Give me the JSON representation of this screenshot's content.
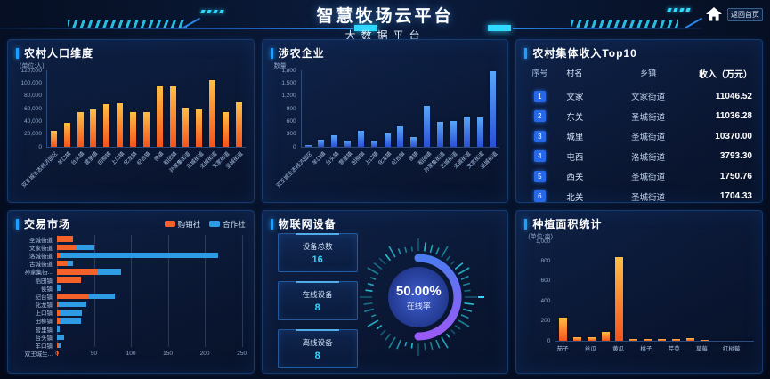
{
  "header": {
    "title": "智慧牧场云平台",
    "subtitle": "大数据平台",
    "home_label": "返回首页"
  },
  "colors": {
    "accent": "#1e9fff",
    "cyan": "#2fd9ff",
    "orange_top": "#ffbe45",
    "orange_bottom": "#f4531d",
    "blue_top": "#58a6f7",
    "blue_bottom": "#2a50d4",
    "market_buy": "#f4622a",
    "market_coop": "#2e9be5",
    "gauge_start": "#4b7bf0",
    "gauge_end": "#9a5af5",
    "badge": "#2668e8"
  },
  "panels": {
    "population": {
      "title": "农村人口维度",
      "unit": "(单位:人)"
    },
    "enterprise": {
      "title": "涉农企业",
      "axis_label": "数量"
    },
    "income": {
      "title": "农村集体收入Top10",
      "columns": [
        "序号",
        "村名",
        "乡镇",
        "收入（万元）"
      ],
      "rows": [
        {
          "rank": "1",
          "village": "文家",
          "town": "文家街道",
          "income": "11046.52"
        },
        {
          "rank": "2",
          "village": "东关",
          "town": "圣城街道",
          "income": "11036.28"
        },
        {
          "rank": "3",
          "village": "城里",
          "town": "圣城街道",
          "income": "10370.00"
        },
        {
          "rank": "4",
          "village": "屯西",
          "town": "洛城街道",
          "income": "3793.30"
        },
        {
          "rank": "5",
          "village": "西关",
          "town": "圣城街道",
          "income": "1750.76"
        },
        {
          "rank": "6",
          "village": "北关",
          "town": "圣城街道",
          "income": "1704.33"
        }
      ]
    },
    "market": {
      "title": "交易市场",
      "legend": [
        "购销社",
        "合作社"
      ]
    },
    "iot": {
      "title": "物联网设备",
      "stats": [
        {
          "label": "设备总数",
          "value": "16"
        },
        {
          "label": "在线设备",
          "value": "8"
        },
        {
          "label": "离线设备",
          "value": "8"
        }
      ],
      "gauge": {
        "display": "50.00%",
        "label": "在线率",
        "value": 50
      }
    },
    "planting": {
      "title": "种植面积统计",
      "unit": "(单位:亩)"
    }
  },
  "chart_data": [
    {
      "id": "population",
      "type": "bar",
      "title": "农村人口维度",
      "ylabel": "单位:人",
      "ylim": [
        0,
        120000
      ],
      "yticks": [
        "120,000",
        "100,000",
        "80,000",
        "60,000",
        "40,000",
        "20,000",
        "0"
      ],
      "categories": [
        "双王城生态经济园区",
        "羊口镇",
        "台头镇",
        "营里镇",
        "田柳镇",
        "上口镇",
        "化龙镇",
        "纪台镇",
        "侯镇",
        "稻田镇",
        "孙家集街道",
        "古城街道",
        "洛城街道",
        "文家街道",
        "圣城街道"
      ],
      "values": [
        25000,
        38000,
        54000,
        58000,
        67000,
        68000,
        54000,
        55000,
        95000,
        95000,
        61000,
        59000,
        104000,
        55000,
        70000
      ]
    },
    {
      "id": "enterprise",
      "type": "bar",
      "title": "涉农企业",
      "ylabel": "数量",
      "ylim": [
        0,
        1800
      ],
      "yticks": [
        "1,800",
        "1,500",
        "1,200",
        "900",
        "600",
        "300",
        "0"
      ],
      "categories": [
        "双王城生态经济园区",
        "羊口镇",
        "台头镇",
        "营里镇",
        "田柳镇",
        "上口镇",
        "化龙镇",
        "纪台镇",
        "侯镇",
        "稻田镇",
        "孙家集街道",
        "古城街道",
        "洛城街道",
        "文家街道",
        "圣城街道"
      ],
      "values": [
        50,
        160,
        270,
        140,
        380,
        140,
        310,
        480,
        240,
        960,
        590,
        610,
        720,
        690,
        1780
      ]
    },
    {
      "id": "market",
      "type": "bar-horizontal-stacked",
      "title": "交易市场",
      "xlim": [
        0,
        250
      ],
      "xticks": [
        "0",
        "50",
        "100",
        "150",
        "200",
        "250"
      ],
      "legend_position": "top-right",
      "categories": [
        "圣城街道",
        "文家街道",
        "洛城街道",
        "古城街道",
        "孙家集街...",
        "稻田镇",
        "侯镇",
        "纪台镇",
        "化龙镇",
        "上口镇",
        "田柳镇",
        "营里镇",
        "台头镇",
        "羊口镇",
        "双王城生..."
      ],
      "series": [
        {
          "name": "购销社",
          "values": [
            22,
            27,
            5,
            13,
            55,
            33,
            0,
            42,
            2,
            4,
            4,
            0,
            0,
            3,
            1
          ]
        },
        {
          "name": "合作社",
          "values": [
            0,
            23,
            213,
            9,
            32,
            0,
            5,
            36,
            38,
            30,
            29,
            4,
            10,
            2,
            0
          ]
        }
      ]
    },
    {
      "id": "gauge",
      "type": "gauge",
      "title": "物联网设备在线率",
      "value": 50,
      "display": "50.00%",
      "label": "在线率"
    },
    {
      "id": "planting",
      "type": "bar",
      "title": "种植面积统计",
      "ylabel": "单位:亩",
      "ylim": [
        0,
        1000
      ],
      "yticks": [
        "1,000",
        "800",
        "600",
        "400",
        "200",
        "0"
      ],
      "categories": [
        "茄子",
        "",
        "丝瓜",
        "",
        "黄瓜",
        "",
        "桃子",
        "",
        "芹菜",
        "",
        "草莓",
        "",
        "红树莓",
        ""
      ],
      "values": [
        230,
        40,
        35,
        90,
        840,
        20,
        18,
        20,
        22,
        25,
        5,
        3,
        2,
        1
      ]
    }
  ]
}
